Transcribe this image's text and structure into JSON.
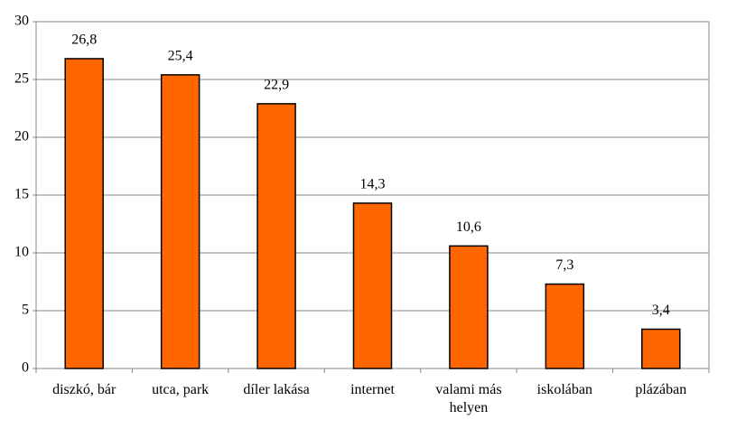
{
  "chart_data": {
    "type": "bar",
    "categories": [
      "diszkó, bár",
      "utca, park",
      "díler lakása",
      "internet",
      "valami más helyen",
      "iskolában",
      "plázában"
    ],
    "values": [
      26.8,
      25.4,
      22.9,
      14.3,
      10.6,
      7.3,
      3.4
    ],
    "value_labels": [
      "26,8",
      "25,4",
      "22,9",
      "14,3",
      "10,6",
      "7,3",
      "3,4"
    ],
    "color": "#ff6600",
    "ylim": [
      0,
      30
    ],
    "yticks": [
      0,
      5,
      10,
      15,
      20,
      25,
      30
    ],
    "grid": true
  }
}
